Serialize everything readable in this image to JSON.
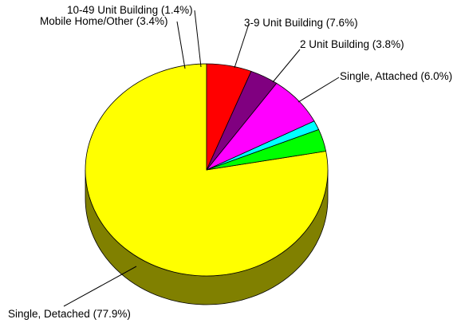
{
  "chart_data": {
    "type": "pie",
    "title": "",
    "style": "3d",
    "slices": [
      {
        "label": "Single, Detached (77.9%)",
        "value": 77.9,
        "color": "#ffff00",
        "side_color": "#808000"
      },
      {
        "label": "Mobile Home/Other (3.4%)",
        "value": 3.4,
        "color": "#00ff00",
        "side_color": "#008000"
      },
      {
        "label": "10-49 Unit Building (1.4%)",
        "value": 1.4,
        "color": "#00ffff",
        "side_color": "#008080"
      },
      {
        "label": "3-9 Unit Building (7.6%)",
        "value": 7.6,
        "color": "#ff00ff",
        "side_color": "#800080"
      },
      {
        "label": "2 Unit Building (3.8%)",
        "value": 3.8,
        "color": "#800080",
        "side_color": "#400040"
      },
      {
        "label": "Single, Attached (6.0%)",
        "value": 6.0,
        "color": "#ff0000",
        "side_color": "#800000"
      }
    ]
  }
}
